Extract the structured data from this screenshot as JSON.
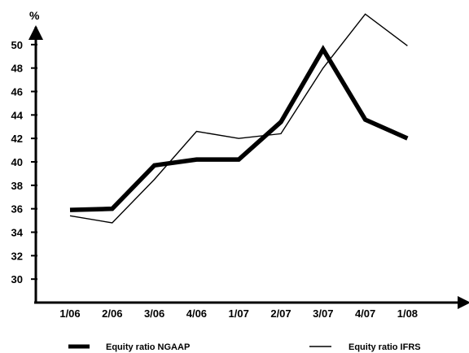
{
  "chart_data": {
    "type": "line",
    "ylabel": "%",
    "xlabel": "",
    "categories": [
      "1/06",
      "2/06",
      "3/06",
      "4/06",
      "1/07",
      "2/07",
      "3/07",
      "4/07",
      "1/08"
    ],
    "yticks": [
      30,
      32,
      34,
      36,
      38,
      40,
      42,
      44,
      46,
      48,
      50
    ],
    "ylim": [
      28,
      52
    ],
    "grid": false,
    "legend_position": "bottom",
    "colors": {
      "series": "#000000",
      "axis": "#000000"
    },
    "series": [
      {
        "name": "Equity ratio NGAAP",
        "style": "thick",
        "values": [
          35.9,
          36.0,
          39.7,
          40.2,
          40.2,
          43.4,
          49.6,
          43.6,
          42.0
        ]
      },
      {
        "name": "Equity ratio IFRS",
        "style": "thin",
        "values": [
          35.4,
          34.8,
          38.5,
          42.6,
          42.0,
          42.4,
          48.0,
          52.6,
          49.9
        ]
      }
    ]
  }
}
